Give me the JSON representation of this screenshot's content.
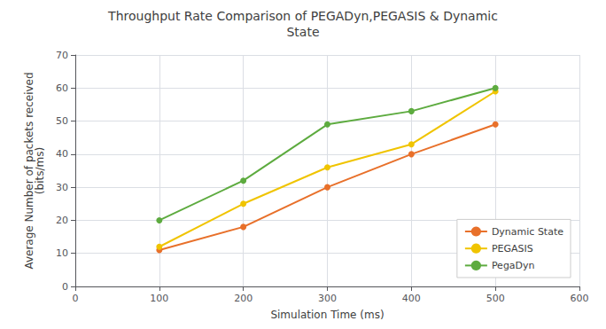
{
  "chart_data": {
    "type": "line",
    "title": "Throughput Rate Comparison of PEGADyn,PEGASIS & Dynamic\nState",
    "xlabel": "Simulation Time (ms)",
    "ylabel": "Average Number of packets received\n(bits/ms)",
    "x": [
      100,
      200,
      300,
      400,
      500
    ],
    "series": [
      {
        "name": "Dynamic State",
        "color": "#e8702a",
        "values": [
          11,
          18,
          30,
          40,
          49
        ]
      },
      {
        "name": "PEGASIS",
        "color": "#f0c400",
        "values": [
          12,
          25,
          36,
          43,
          59
        ]
      },
      {
        "name": "PegaDyn",
        "color": "#5dab3f",
        "values": [
          20,
          32,
          49,
          53,
          60
        ]
      }
    ],
    "xlim": [
      0,
      600
    ],
    "ylim": [
      0,
      70
    ],
    "xticks": [
      0,
      100,
      200,
      300,
      400,
      500,
      600
    ],
    "yticks": [
      0,
      10,
      20,
      30,
      40,
      50,
      60,
      70
    ],
    "grid": true,
    "legend": "lower right",
    "marker": "circle"
  }
}
